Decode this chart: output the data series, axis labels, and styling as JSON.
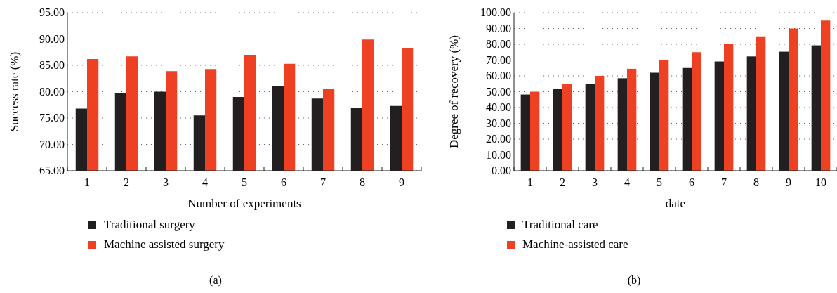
{
  "chart_data": [
    {
      "type": "bar",
      "xlabel": "Number of experiments",
      "ylabel": "Success rate (%)",
      "categories": [
        "1",
        "2",
        "3",
        "4",
        "5",
        "6",
        "7",
        "8",
        "9"
      ],
      "series": [
        {
          "name": "Traditional surgery",
          "color": "#231f20",
          "values": [
            76.8,
            79.7,
            80.0,
            75.5,
            79.0,
            81.1,
            78.7,
            76.9,
            77.3
          ]
        },
        {
          "name": "Machine assisted surgery",
          "color": "#ee4023",
          "values": [
            86.2,
            86.7,
            83.9,
            84.3,
            87.0,
            85.3,
            80.6,
            89.9,
            88.3
          ]
        }
      ],
      "ylim": [
        65,
        95
      ],
      "yticks": [
        {
          "value": 65,
          "label": "65.00"
        },
        {
          "value": 70,
          "label": "70.00"
        },
        {
          "value": 75,
          "label": "75.00"
        },
        {
          "value": 80,
          "label": "80.00"
        },
        {
          "value": 85,
          "label": "85.00"
        },
        {
          "value": 90,
          "label": "90.00"
        },
        {
          "value": 95,
          "label": "95.00"
        }
      ],
      "grid": "y",
      "legend": "bottom",
      "annotations": [
        "(a)"
      ]
    },
    {
      "type": "bar",
      "xlabel": "date",
      "ylabel": "Degree of recovery (%)",
      "categories": [
        "1",
        "2",
        "3",
        "4",
        "5",
        "6",
        "7",
        "8",
        "9",
        "10"
      ],
      "series": [
        {
          "name": "Traditional care",
          "color": "#231f20",
          "values": [
            48.2,
            51.8,
            55.0,
            58.5,
            62.0,
            65.0,
            69.1,
            72.3,
            75.3,
            79.3
          ]
        },
        {
          "name": "Machine-assisted care",
          "color": "#ee4023",
          "values": [
            50.0,
            55.0,
            60.0,
            64.5,
            70.0,
            75.0,
            80.0,
            85.0,
            90.0,
            95.0
          ]
        }
      ],
      "ylim": [
        0,
        100
      ],
      "yticks": [
        {
          "value": 0,
          "label": "0.00"
        },
        {
          "value": 10,
          "label": "10.00"
        },
        {
          "value": 20,
          "label": "20.00"
        },
        {
          "value": 30,
          "label": "30.00"
        },
        {
          "value": 40,
          "label": "40.00"
        },
        {
          "value": 50,
          "label": "50.00"
        },
        {
          "value": 60,
          "label": "60.00"
        },
        {
          "value": 70,
          "label": "70.00"
        },
        {
          "value": 80,
          "label": "80.00"
        },
        {
          "value": 90,
          "label": "90.00"
        },
        {
          "value": 100,
          "label": "100.00"
        }
      ],
      "grid": "y",
      "legend": "bottom",
      "annotations": [
        "(b)"
      ]
    }
  ]
}
